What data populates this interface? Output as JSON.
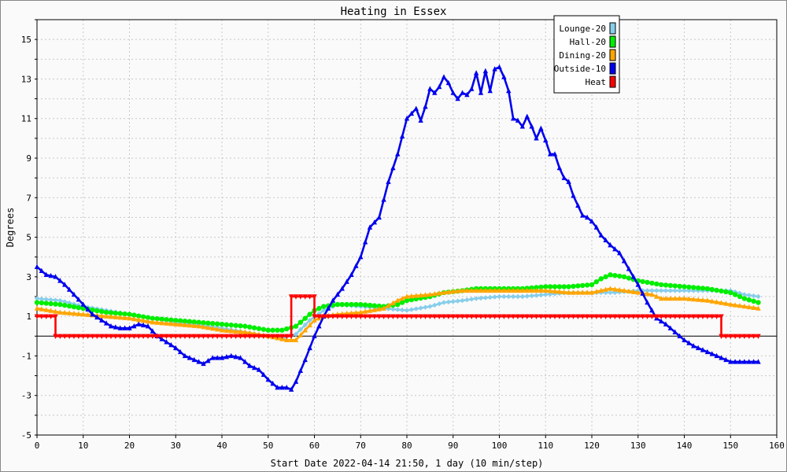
{
  "chart_data": {
    "type": "line",
    "title": "Heating in Essex",
    "xlabel": "Start Date 2022-04-14 21:50, 1 day (10 min/step)",
    "ylabel": "Degrees",
    "xlim": [
      0,
      160
    ],
    "ylim": [
      -5,
      16
    ],
    "xticks": [
      0,
      10,
      20,
      30,
      40,
      50,
      60,
      70,
      80,
      90,
      100,
      110,
      120,
      130,
      140,
      150,
      160
    ],
    "yticks": [
      -5,
      -3,
      -1,
      1,
      3,
      5,
      7,
      9,
      11,
      13,
      15
    ],
    "grid": true,
    "legend_position": "top-right",
    "series": [
      {
        "name": "Lounge-20",
        "color": "#87CEEB",
        "marker": "diamond",
        "points": [
          [
            0,
            1.9
          ],
          [
            5,
            1.8
          ],
          [
            10,
            1.5
          ],
          [
            15,
            1.3
          ],
          [
            20,
            1.1
          ],
          [
            25,
            0.9
          ],
          [
            30,
            0.7
          ],
          [
            35,
            0.6
          ],
          [
            40,
            0.4
          ],
          [
            45,
            0.2
          ],
          [
            50,
            0.0
          ],
          [
            53,
            -0.1
          ],
          [
            56,
            0.1
          ],
          [
            59,
            0.8
          ],
          [
            62,
            1.3
          ],
          [
            65,
            1.6
          ],
          [
            70,
            1.5
          ],
          [
            75,
            1.4
          ],
          [
            80,
            1.3
          ],
          [
            85,
            1.5
          ],
          [
            88,
            1.7
          ],
          [
            92,
            1.8
          ],
          [
            95,
            1.9
          ],
          [
            100,
            2.0
          ],
          [
            105,
            2.0
          ],
          [
            110,
            2.1
          ],
          [
            115,
            2.2
          ],
          [
            120,
            2.2
          ],
          [
            125,
            2.2
          ],
          [
            130,
            2.3
          ],
          [
            135,
            2.3
          ],
          [
            140,
            2.3
          ],
          [
            145,
            2.3
          ],
          [
            150,
            2.3
          ],
          [
            153,
            2.1
          ],
          [
            156,
            2.0
          ]
        ]
      },
      {
        "name": "Hall-20",
        "color": "#00EE00",
        "marker": "circle",
        "points": [
          [
            0,
            1.7
          ],
          [
            5,
            1.6
          ],
          [
            10,
            1.4
          ],
          [
            15,
            1.2
          ],
          [
            20,
            1.1
          ],
          [
            25,
            0.9
          ],
          [
            30,
            0.8
          ],
          [
            35,
            0.7
          ],
          [
            40,
            0.6
          ],
          [
            45,
            0.5
          ],
          [
            50,
            0.3
          ],
          [
            53,
            0.3
          ],
          [
            56,
            0.5
          ],
          [
            58,
            0.9
          ],
          [
            60,
            1.3
          ],
          [
            62,
            1.5
          ],
          [
            65,
            1.6
          ],
          [
            70,
            1.6
          ],
          [
            75,
            1.5
          ],
          [
            78,
            1.6
          ],
          [
            80,
            1.8
          ],
          [
            85,
            2.0
          ],
          [
            88,
            2.2
          ],
          [
            92,
            2.3
          ],
          [
            95,
            2.4
          ],
          [
            100,
            2.4
          ],
          [
            105,
            2.4
          ],
          [
            110,
            2.5
          ],
          [
            115,
            2.5
          ],
          [
            120,
            2.6
          ],
          [
            122,
            2.9
          ],
          [
            124,
            3.1
          ],
          [
            127,
            3.0
          ],
          [
            130,
            2.8
          ],
          [
            135,
            2.6
          ],
          [
            140,
            2.5
          ],
          [
            145,
            2.4
          ],
          [
            150,
            2.2
          ],
          [
            153,
            1.9
          ],
          [
            156,
            1.7
          ]
        ]
      },
      {
        "name": "Dining-20",
        "color": "#FFA500",
        "marker": "triangle-up",
        "points": [
          [
            0,
            1.4
          ],
          [
            5,
            1.2
          ],
          [
            10,
            1.1
          ],
          [
            15,
            1.0
          ],
          [
            20,
            0.9
          ],
          [
            25,
            0.7
          ],
          [
            30,
            0.6
          ],
          [
            35,
            0.5
          ],
          [
            40,
            0.3
          ],
          [
            45,
            0.2
          ],
          [
            50,
            0.0
          ],
          [
            54,
            -0.2
          ],
          [
            56,
            -0.2
          ],
          [
            58,
            0.3
          ],
          [
            60,
            0.8
          ],
          [
            62,
            1.0
          ],
          [
            65,
            1.1
          ],
          [
            70,
            1.2
          ],
          [
            75,
            1.4
          ],
          [
            78,
            1.8
          ],
          [
            80,
            2.0
          ],
          [
            85,
            2.1
          ],
          [
            88,
            2.2
          ],
          [
            92,
            2.3
          ],
          [
            95,
            2.3
          ],
          [
            100,
            2.3
          ],
          [
            105,
            2.3
          ],
          [
            110,
            2.3
          ],
          [
            115,
            2.2
          ],
          [
            120,
            2.2
          ],
          [
            124,
            2.4
          ],
          [
            130,
            2.2
          ],
          [
            133,
            2.1
          ],
          [
            135,
            1.9
          ],
          [
            140,
            1.9
          ],
          [
            145,
            1.8
          ],
          [
            150,
            1.6
          ],
          [
            153,
            1.5
          ],
          [
            156,
            1.4
          ]
        ]
      },
      {
        "name": "Outside-10",
        "color": "#0000EE",
        "marker": "triangle-up",
        "points": [
          [
            0,
            3.5
          ],
          [
            2,
            3.1
          ],
          [
            4,
            3.0
          ],
          [
            6,
            2.6
          ],
          [
            8,
            2.1
          ],
          [
            10,
            1.6
          ],
          [
            12,
            1.1
          ],
          [
            14,
            0.8
          ],
          [
            16,
            0.5
          ],
          [
            18,
            0.4
          ],
          [
            20,
            0.4
          ],
          [
            22,
            0.6
          ],
          [
            24,
            0.5
          ],
          [
            26,
            0.0
          ],
          [
            28,
            -0.3
          ],
          [
            30,
            -0.6
          ],
          [
            32,
            -1.0
          ],
          [
            34,
            -1.2
          ],
          [
            36,
            -1.4
          ],
          [
            38,
            -1.1
          ],
          [
            40,
            -1.1
          ],
          [
            42,
            -1.0
          ],
          [
            44,
            -1.1
          ],
          [
            46,
            -1.5
          ],
          [
            48,
            -1.7
          ],
          [
            50,
            -2.2
          ],
          [
            52,
            -2.6
          ],
          [
            54,
            -2.6
          ],
          [
            55,
            -2.7
          ],
          [
            56,
            -2.3
          ],
          [
            58,
            -1.2
          ],
          [
            60,
            0.0
          ],
          [
            62,
            1.0
          ],
          [
            64,
            1.8
          ],
          [
            66,
            2.4
          ],
          [
            68,
            3.1
          ],
          [
            70,
            4.0
          ],
          [
            72,
            5.5
          ],
          [
            74,
            6.0
          ],
          [
            76,
            7.8
          ],
          [
            78,
            9.2
          ],
          [
            80,
            11.0
          ],
          [
            82,
            11.5
          ],
          [
            83,
            10.9
          ],
          [
            84,
            11.6
          ],
          [
            85,
            12.5
          ],
          [
            86,
            12.3
          ],
          [
            87,
            12.6
          ],
          [
            88,
            13.1
          ],
          [
            89,
            12.8
          ],
          [
            90,
            12.3
          ],
          [
            91,
            12.0
          ],
          [
            92,
            12.3
          ],
          [
            93,
            12.2
          ],
          [
            94,
            12.5
          ],
          [
            95,
            13.3
          ],
          [
            96,
            12.3
          ],
          [
            97,
            13.4
          ],
          [
            98,
            12.4
          ],
          [
            99,
            13.5
          ],
          [
            100,
            13.6
          ],
          [
            101,
            13.1
          ],
          [
            102,
            12.4
          ],
          [
            103,
            11.0
          ],
          [
            104,
            10.9
          ],
          [
            105,
            10.6
          ],
          [
            106,
            11.1
          ],
          [
            107,
            10.6
          ],
          [
            108,
            10.0
          ],
          [
            109,
            10.5
          ],
          [
            110,
            9.9
          ],
          [
            111,
            9.2
          ],
          [
            112,
            9.2
          ],
          [
            113,
            8.5
          ],
          [
            114,
            8.0
          ],
          [
            115,
            7.8
          ],
          [
            116,
            7.1
          ],
          [
            117,
            6.6
          ],
          [
            118,
            6.1
          ],
          [
            119,
            6.0
          ],
          [
            120,
            5.8
          ],
          [
            121,
            5.5
          ],
          [
            122,
            5.1
          ],
          [
            124,
            4.6
          ],
          [
            126,
            4.2
          ],
          [
            128,
            3.4
          ],
          [
            130,
            2.6
          ],
          [
            132,
            1.7
          ],
          [
            134,
            0.9
          ],
          [
            136,
            0.6
          ],
          [
            138,
            0.2
          ],
          [
            140,
            -0.2
          ],
          [
            142,
            -0.5
          ],
          [
            144,
            -0.7
          ],
          [
            146,
            -0.9
          ],
          [
            148,
            -1.1
          ],
          [
            150,
            -1.3
          ],
          [
            152,
            -1.3
          ],
          [
            154,
            -1.3
          ],
          [
            156,
            -1.3
          ]
        ]
      },
      {
        "name": "Heat",
        "color": "#FF0000",
        "marker": "triangle-down",
        "points": [
          [
            0,
            1
          ],
          [
            4,
            1
          ],
          [
            4,
            0
          ],
          [
            55,
            0
          ],
          [
            55,
            2
          ],
          [
            60,
            2
          ],
          [
            60,
            1
          ],
          [
            148,
            1
          ],
          [
            148,
            0
          ],
          [
            156,
            0
          ]
        ]
      }
    ]
  }
}
